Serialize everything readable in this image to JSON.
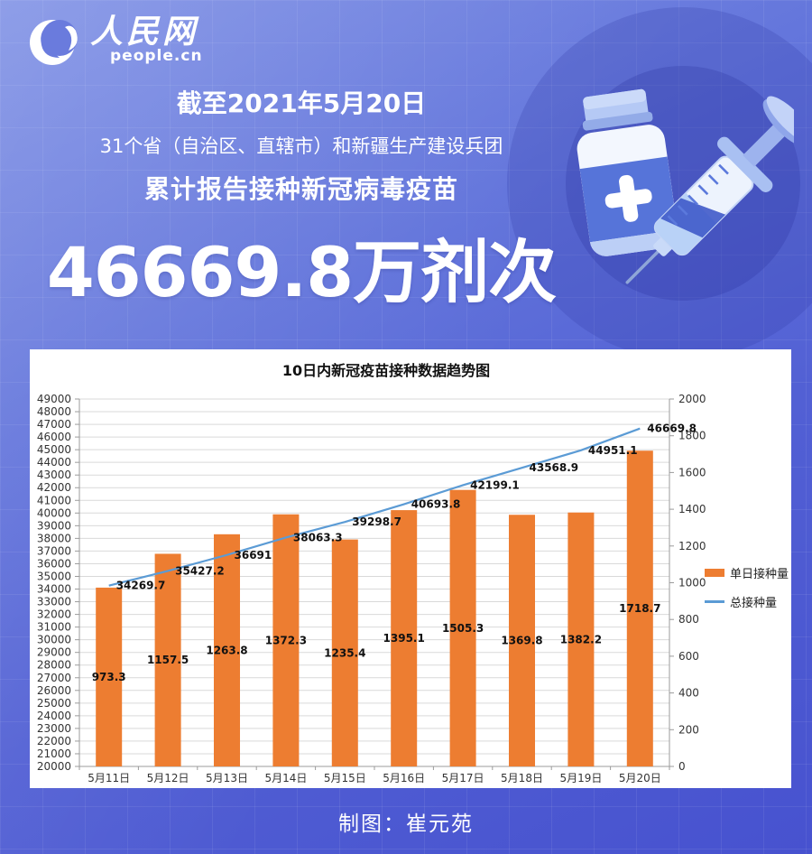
{
  "brand": {
    "logo_text": "人民网",
    "logo_subtext": "people.cn"
  },
  "header": {
    "date_line": "截至2021年5月20日",
    "region_line": "31个省（自治区、直辖市）和新疆生产建设兵团",
    "caption": "累计报告接种新冠病毒疫苗",
    "big_number": "46669.8万剂次"
  },
  "chart_data": {
    "type": "combo-bar-line",
    "title": "10日内新冠疫苗接种数据趋势图",
    "categories": [
      "5月11日",
      "5月12日",
      "5月13日",
      "5月14日",
      "5月15日",
      "5月16日",
      "5月17日",
      "5月18日",
      "5月19日",
      "5月20日"
    ],
    "series": [
      {
        "name": "单日接种量",
        "type": "bar",
        "axis": "right",
        "color": "#ED7D31",
        "values": [
          973.3,
          1157.5,
          1263.8,
          1372.3,
          1235.4,
          1395.1,
          1505.3,
          1369.8,
          1382.2,
          1718.7
        ]
      },
      {
        "name": "总接种量",
        "type": "line",
        "axis": "left",
        "color": "#5B9BD5",
        "values": [
          34269.7,
          35427.2,
          36691,
          38063.3,
          39298.7,
          40693.8,
          42199.1,
          43568.9,
          44951.1,
          46669.8
        ]
      }
    ],
    "left_axis": {
      "min": 20000,
      "max": 49000,
      "step": 1000
    },
    "right_axis": {
      "min": 0,
      "max": 2000,
      "step": 200
    },
    "grid": true,
    "legend_position": "right"
  },
  "footer": {
    "credit": "制图：崔元苑"
  },
  "colors": {
    "bar": "#ED7D31",
    "line": "#5B9BD5",
    "background_top": "#7E90E5",
    "background_bottom": "#4752CF",
    "panel": "#FFFFFF",
    "gridline": "#D9D9D9"
  }
}
